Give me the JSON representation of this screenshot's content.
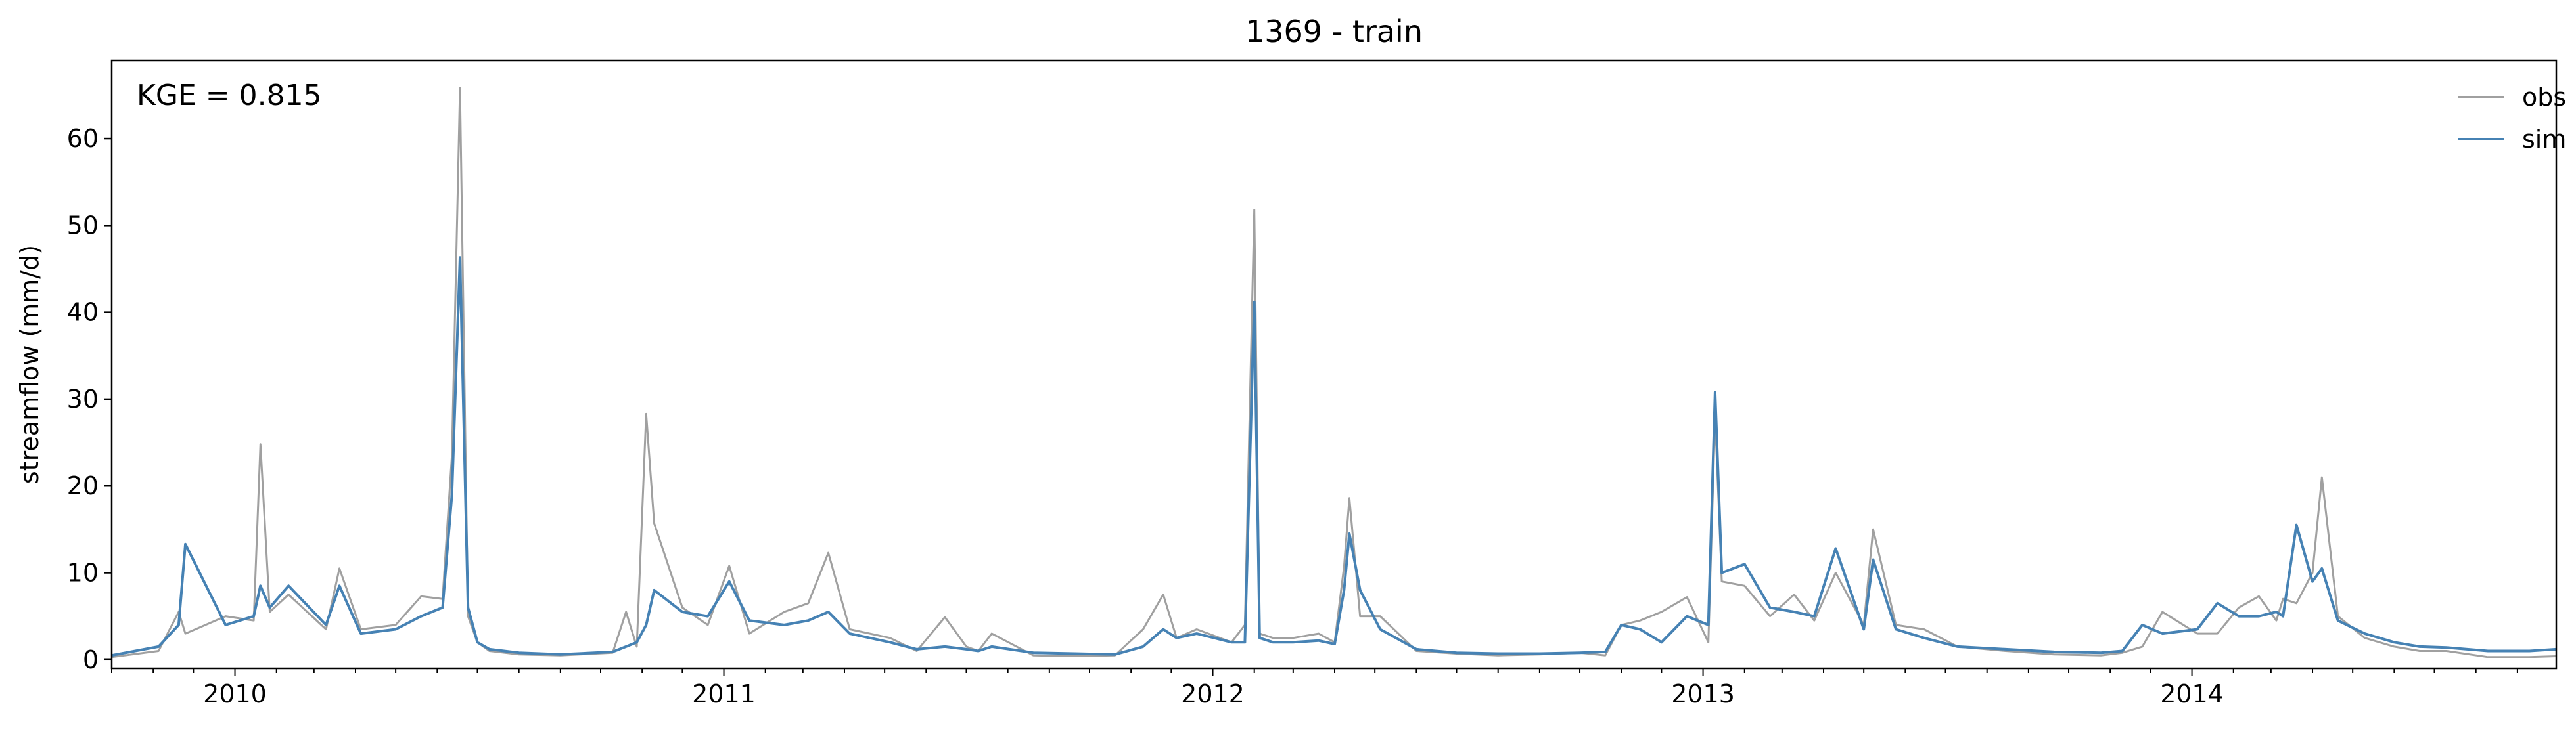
{
  "chart_data": {
    "type": "line",
    "title": "1369 - train",
    "xlabel": "",
    "ylabel": "streamflow (mm/d)",
    "annotation": "KGE = 0.815",
    "x_range": [
      "2009-10-01",
      "2014-09-30"
    ],
    "ylim": [
      -1,
      69
    ],
    "yticks": [
      0,
      10,
      20,
      30,
      40,
      50,
      60
    ],
    "xtick_labels": [
      "2010",
      "2011",
      "2012",
      "2013",
      "2014"
    ],
    "grid": false,
    "legend_position": "top-right",
    "x": [
      "2009-10-01",
      "2009-11-05",
      "2009-11-20",
      "2009-11-25",
      "2009-12-25",
      "2010-01-15",
      "2010-01-20",
      "2010-01-27",
      "2010-02-10",
      "2010-03-10",
      "2010-03-20",
      "2010-04-05",
      "2010-05-01",
      "2010-05-20",
      "2010-06-05",
      "2010-06-12",
      "2010-06-18",
      "2010-06-24",
      "2010-07-01",
      "2010-07-10",
      "2010-08-01",
      "2010-09-01",
      "2010-10-10",
      "2010-10-20",
      "2010-10-28",
      "2010-11-04",
      "2010-11-10",
      "2010-12-01",
      "2010-12-20",
      "2011-01-05",
      "2011-01-20",
      "2011-02-15",
      "2011-03-05",
      "2011-03-20",
      "2011-04-05",
      "2011-05-05",
      "2011-05-25",
      "2011-06-15",
      "2011-07-01",
      "2011-07-10",
      "2011-07-20",
      "2011-08-20",
      "2011-09-20",
      "2011-10-20",
      "2011-11-10",
      "2011-11-25",
      "2011-12-05",
      "2011-12-20",
      "2012-01-15",
      "2012-01-25",
      "2012-02-01",
      "2012-02-05",
      "2012-02-15",
      "2012-03-01",
      "2012-03-20",
      "2012-04-01",
      "2012-04-08",
      "2012-04-12",
      "2012-04-20",
      "2012-05-05",
      "2012-06-01",
      "2012-07-01",
      "2012-08-01",
      "2012-09-01",
      "2012-10-01",
      "2012-10-20",
      "2012-11-01",
      "2012-11-15",
      "2012-12-01",
      "2012-12-20",
      "2013-01-05",
      "2013-01-10",
      "2013-01-15",
      "2013-02-01",
      "2013-02-20",
      "2013-03-10",
      "2013-03-25",
      "2013-04-10",
      "2013-05-01",
      "2013-05-08",
      "2013-05-25",
      "2013-06-15",
      "2013-07-10",
      "2013-08-15",
      "2013-09-20",
      "2013-10-25",
      "2013-11-10",
      "2013-11-25",
      "2013-12-10",
      "2014-01-05",
      "2014-01-20",
      "2014-02-05",
      "2014-02-20",
      "2014-03-05",
      "2014-03-10",
      "2014-03-20",
      "2014-04-01",
      "2014-04-08",
      "2014-04-20",
      "2014-05-10",
      "2014-06-01",
      "2014-06-20",
      "2014-07-10",
      "2014-08-10",
      "2014-09-10",
      "2014-09-30"
    ],
    "series": [
      {
        "name": "obs",
        "color": "#a0a0a0",
        "values": [
          0.3,
          1.0,
          5.5,
          3.0,
          5.0,
          4.5,
          24.8,
          5.5,
          7.5,
          3.5,
          10.5,
          3.5,
          4.0,
          7.3,
          7.0,
          23.5,
          65.8,
          5.0,
          2.0,
          1.0,
          0.6,
          0.5,
          0.8,
          5.5,
          1.5,
          28.3,
          15.7,
          6.0,
          4.0,
          10.8,
          3.0,
          5.5,
          6.5,
          12.3,
          3.5,
          2.5,
          1.0,
          4.9,
          1.5,
          1.0,
          3.0,
          0.5,
          0.4,
          0.5,
          3.5,
          7.5,
          2.5,
          3.5,
          2.0,
          4.0,
          51.8,
          3.0,
          2.5,
          2.5,
          3.0,
          2.0,
          10.7,
          18.6,
          5.0,
          5.0,
          1.0,
          0.7,
          0.5,
          0.6,
          0.8,
          0.5,
          4.0,
          4.5,
          5.5,
          7.2,
          2.0,
          28.0,
          9.0,
          8.5,
          5.0,
          7.5,
          4.5,
          10.0,
          4.0,
          15.0,
          4.0,
          3.5,
          1.5,
          1.0,
          0.6,
          0.5,
          0.8,
          1.5,
          5.5,
          3.0,
          3.0,
          6.0,
          7.3,
          4.5,
          7.0,
          6.5,
          10.0,
          21.0,
          5.0,
          2.5,
          1.5,
          1.0,
          1.0,
          0.3,
          0.3,
          0.4
        ]
      },
      {
        "name": "sim",
        "color": "#4682b4",
        "values": [
          0.5,
          1.5,
          4.0,
          13.3,
          4.0,
          5.0,
          8.5,
          6.0,
          8.5,
          4.0,
          8.5,
          3.0,
          3.5,
          5.0,
          6.0,
          19.0,
          46.3,
          6.0,
          2.0,
          1.2,
          0.8,
          0.6,
          0.9,
          1.5,
          2.0,
          4.0,
          8.0,
          5.5,
          5.0,
          9.0,
          4.5,
          4.0,
          4.5,
          5.5,
          3.0,
          2.0,
          1.2,
          1.5,
          1.2,
          1.0,
          1.5,
          0.8,
          0.7,
          0.6,
          1.5,
          3.5,
          2.5,
          3.0,
          2.0,
          2.0,
          41.2,
          2.5,
          2.0,
          2.0,
          2.2,
          1.8,
          8.0,
          14.5,
          8.0,
          3.5,
          1.2,
          0.8,
          0.7,
          0.7,
          0.8,
          0.9,
          4.0,
          3.5,
          2.0,
          5.0,
          4.0,
          30.8,
          10.0,
          11.0,
          6.0,
          5.5,
          5.0,
          12.8,
          3.5,
          11.5,
          3.5,
          2.5,
          1.5,
          1.2,
          0.9,
          0.8,
          1.0,
          4.0,
          3.0,
          3.5,
          6.5,
          5.0,
          5.0,
          5.5,
          5.0,
          15.5,
          9.0,
          10.5,
          4.5,
          3.0,
          2.0,
          1.5,
          1.4,
          1.0,
          1.0,
          1.2
        ]
      }
    ]
  }
}
